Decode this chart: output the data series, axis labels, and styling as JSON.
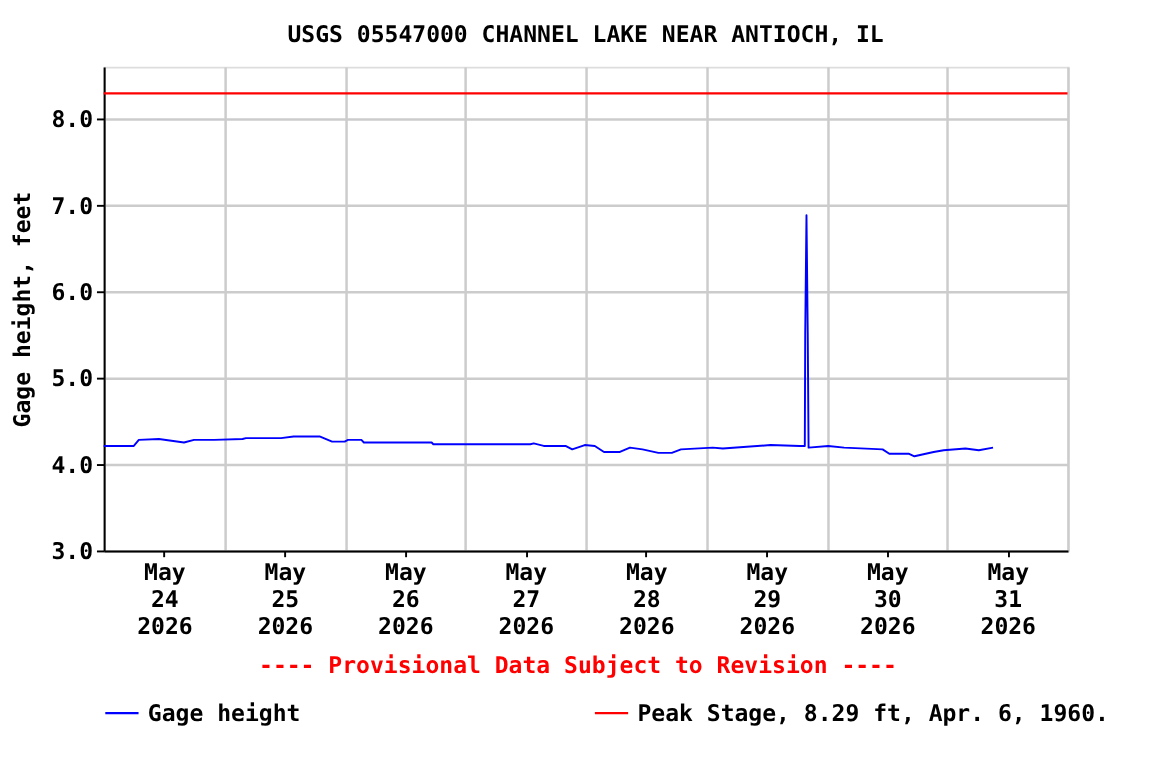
{
  "chart_data": {
    "type": "line",
    "title": "USGS 05547000 CHANNEL LAKE NEAR ANTIOCH, IL",
    "ylabel": "Gage height, feet",
    "x": [
      "2026-05-24T00:00",
      "2026-05-24T06:00",
      "2026-05-24T07:00",
      "2026-05-24T11:00",
      "2026-05-24T16:00",
      "2026-05-24T18:00",
      "2026-05-24T22:00",
      "2026-05-25T03:40",
      "2026-05-25T04:20",
      "2026-05-25T11:20",
      "2026-05-25T13:50",
      "2026-05-25T19:00",
      "2026-05-25T21:30",
      "2026-05-26T00:00",
      "2026-05-26T00:40",
      "2026-05-26T03:20",
      "2026-05-26T03:50",
      "2026-05-26T17:20",
      "2026-05-26T17:40",
      "2026-05-27T13:00",
      "2026-05-27T13:40",
      "2026-05-27T15:40",
      "2026-05-27T20:00",
      "2026-05-27T21:20",
      "2026-05-27T23:50",
      "2026-05-28T01:50",
      "2026-05-28T03:40",
      "2026-05-28T06:50",
      "2026-05-28T08:50",
      "2026-05-28T11:20",
      "2026-05-28T14:30",
      "2026-05-28T17:10",
      "2026-05-28T19:00",
      "2026-05-29T01:20",
      "2026-05-29T03:20",
      "2026-05-29T12:50",
      "2026-05-29T18:40",
      "2026-05-29T19:40",
      "2026-05-29T19:45",
      "2026-05-29T20:00",
      "2026-05-29T20:15",
      "2026-05-29T20:25",
      "2026-05-30T00:20",
      "2026-05-30T03:30",
      "2026-05-30T11:10",
      "2026-05-30T12:30",
      "2026-05-30T16:20",
      "2026-05-30T17:30",
      "2026-05-30T21:20",
      "2026-05-30T23:20",
      "2026-05-31T03:40",
      "2026-05-31T06:20",
      "2026-05-31T09:10"
    ],
    "series": [
      {
        "name": "Gage height",
        "color": "#0000ff",
        "values": [
          4.21,
          4.21,
          4.28,
          4.29,
          4.25,
          4.28,
          4.28,
          4.29,
          4.3,
          4.3,
          4.32,
          4.32,
          4.26,
          4.26,
          4.28,
          4.28,
          4.25,
          4.25,
          4.23,
          4.23,
          4.24,
          4.21,
          4.21,
          4.17,
          4.22,
          4.21,
          4.14,
          4.14,
          4.19,
          4.17,
          4.13,
          4.13,
          4.17,
          4.19,
          4.18,
          4.22,
          4.21,
          4.21,
          5.52,
          6.88,
          5.52,
          4.19,
          4.21,
          4.19,
          4.17,
          4.12,
          4.12,
          4.09,
          4.14,
          4.16,
          4.18,
          4.16,
          4.19
        ]
      }
    ],
    "ref_lines": [
      {
        "axis": "y",
        "value": 8.29,
        "label": "Peak Stage, 8.29 ft, Apr. 6, 1960.",
        "color": "#ff0000"
      }
    ],
    "annotations": [
      "---- Provisional Data Subject to Revision ----"
    ],
    "xlim": [
      "2026-05-24T00:00",
      "2026-06-01T00:00"
    ],
    "xticks": [
      {
        "value": "2026-05-24T00:00",
        "label": null
      },
      {
        "value": "2026-05-24T12:00",
        "label": "May\n24\n2026"
      },
      {
        "value": "2026-05-25T00:00",
        "label": null
      },
      {
        "value": "2026-05-25T12:00",
        "label": "May\n25\n2026"
      },
      {
        "value": "2026-05-26T00:00",
        "label": null
      },
      {
        "value": "2026-05-26T12:00",
        "label": "May\n26\n2026"
      },
      {
        "value": "2026-05-27T00:00",
        "label": null
      },
      {
        "value": "2026-05-27T12:00",
        "label": "May\n27\n2026"
      },
      {
        "value": "2026-05-28T00:00",
        "label": null
      },
      {
        "value": "2026-05-28T12:00",
        "label": "May\n28\n2026"
      },
      {
        "value": "2026-05-29T00:00",
        "label": null
      },
      {
        "value": "2026-05-29T12:00",
        "label": "May\n29\n2026"
      },
      {
        "value": "2026-05-30T00:00",
        "label": null
      },
      {
        "value": "2026-05-30T12:00",
        "label": "May\n30\n2026"
      },
      {
        "value": "2026-05-31T00:00",
        "label": null
      },
      {
        "value": "2026-05-31T12:00",
        "label": "May\n31\n2026"
      },
      {
        "value": "2026-06-01T00:00",
        "label": null
      }
    ],
    "ylim": [
      3.0,
      8.6
    ],
    "yticks": [
      {
        "value": 3,
        "label": "3.0"
      },
      {
        "value": 4,
        "label": "4.0"
      },
      {
        "value": 5,
        "label": "5.0"
      },
      {
        "value": 6,
        "label": "6.0"
      },
      {
        "value": 7,
        "label": "7.0"
      },
      {
        "value": 8,
        "label": "8.0"
      }
    ],
    "grid": true,
    "legend": "bottom",
    "marker": "none",
    "line_style": "solid"
  }
}
